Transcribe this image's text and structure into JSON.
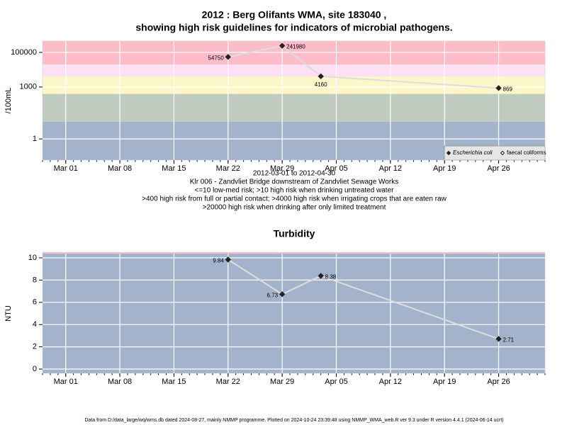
{
  "header": {
    "title_lines": [
      "2012 : Berg Olifants WMA, site 183040 ,",
      "showing high risk guidelines for indicators of microbial pathogens."
    ]
  },
  "footer": "Data from D:/data_large/wq/wms.db dated 2024-08-27, mainly NMMP programme. Plotted on 2024-10-24 23:39:48 using NMMP_WMA_web.R ver 9.3 under R version 4.4.1 (2024-06-14 ucrt)",
  "chart_data": [
    {
      "type": "line",
      "ylabel": "/100mL",
      "log_y": true,
      "grid": true,
      "x": [
        "Mar 22",
        "Mar 29",
        "Apr 03",
        "Apr 26"
      ],
      "series": [
        {
          "name": "Escherichia coli",
          "color": "#222222",
          "marker": "filled",
          "values": [
            54750,
            241980,
            4160,
            869
          ]
        },
        {
          "name": "faecal coliforms",
          "color": "#222222",
          "marker": "open",
          "values": [
            null,
            null,
            null,
            null
          ]
        }
      ],
      "line_color": "#dddddd",
      "xlim": [
        "Feb 27",
        "May 02"
      ],
      "xticks": [
        "Mar 01",
        "Mar 08",
        "Mar 15",
        "Mar 22",
        "Mar 29",
        "Apr 05",
        "Apr 12",
        "Apr 19",
        "Apr 26"
      ],
      "ylim": [
        0.06,
        450000
      ],
      "yticks": [
        1,
        1000,
        100000
      ],
      "band_limits": [
        10,
        400,
        4000,
        20000
      ],
      "band_colors": [
        "#a3b3cc",
        "#c0cbc0",
        "#fdf6c8",
        "#fde0f3",
        "#fcbcc8"
      ],
      "legend": "bottom-right",
      "notes": [
        "2012-03-01 to 2012-04-30",
        "Klr 006 - Zandvliet Bridge downstream of Zandvliet Sewage Works",
        "<=10 low-med risk; >10 high risk when drinking untreated water",
        ">400 high risk from full or partial contact; >4000 high risk when irrigating crops that are eaten raw",
        ">20000 high risk when drinking after only limited treatment"
      ]
    },
    {
      "type": "line",
      "title": "Turbidity",
      "ylabel": "NTU",
      "log_y": false,
      "grid": true,
      "x": [
        "Mar 22",
        "Mar 29",
        "Apr 03",
        "Apr 26"
      ],
      "series": [
        {
          "name": "Turbidity",
          "color": "#222222",
          "marker": "filled",
          "values": [
            9.84,
            6.73,
            8.38,
            2.71
          ]
        }
      ],
      "line_color": "#dddddd",
      "xlim": [
        "Feb 27",
        "May 02"
      ],
      "xticks": [
        "Mar 01",
        "Mar 08",
        "Mar 15",
        "Mar 22",
        "Mar 29",
        "Apr 05",
        "Apr 12",
        "Apr 19",
        "Apr 26"
      ],
      "ylim": [
        -0.38,
        10.38
      ],
      "yticks": [
        0,
        2,
        4,
        6,
        8,
        10
      ],
      "background": "#a3b3cc"
    }
  ]
}
